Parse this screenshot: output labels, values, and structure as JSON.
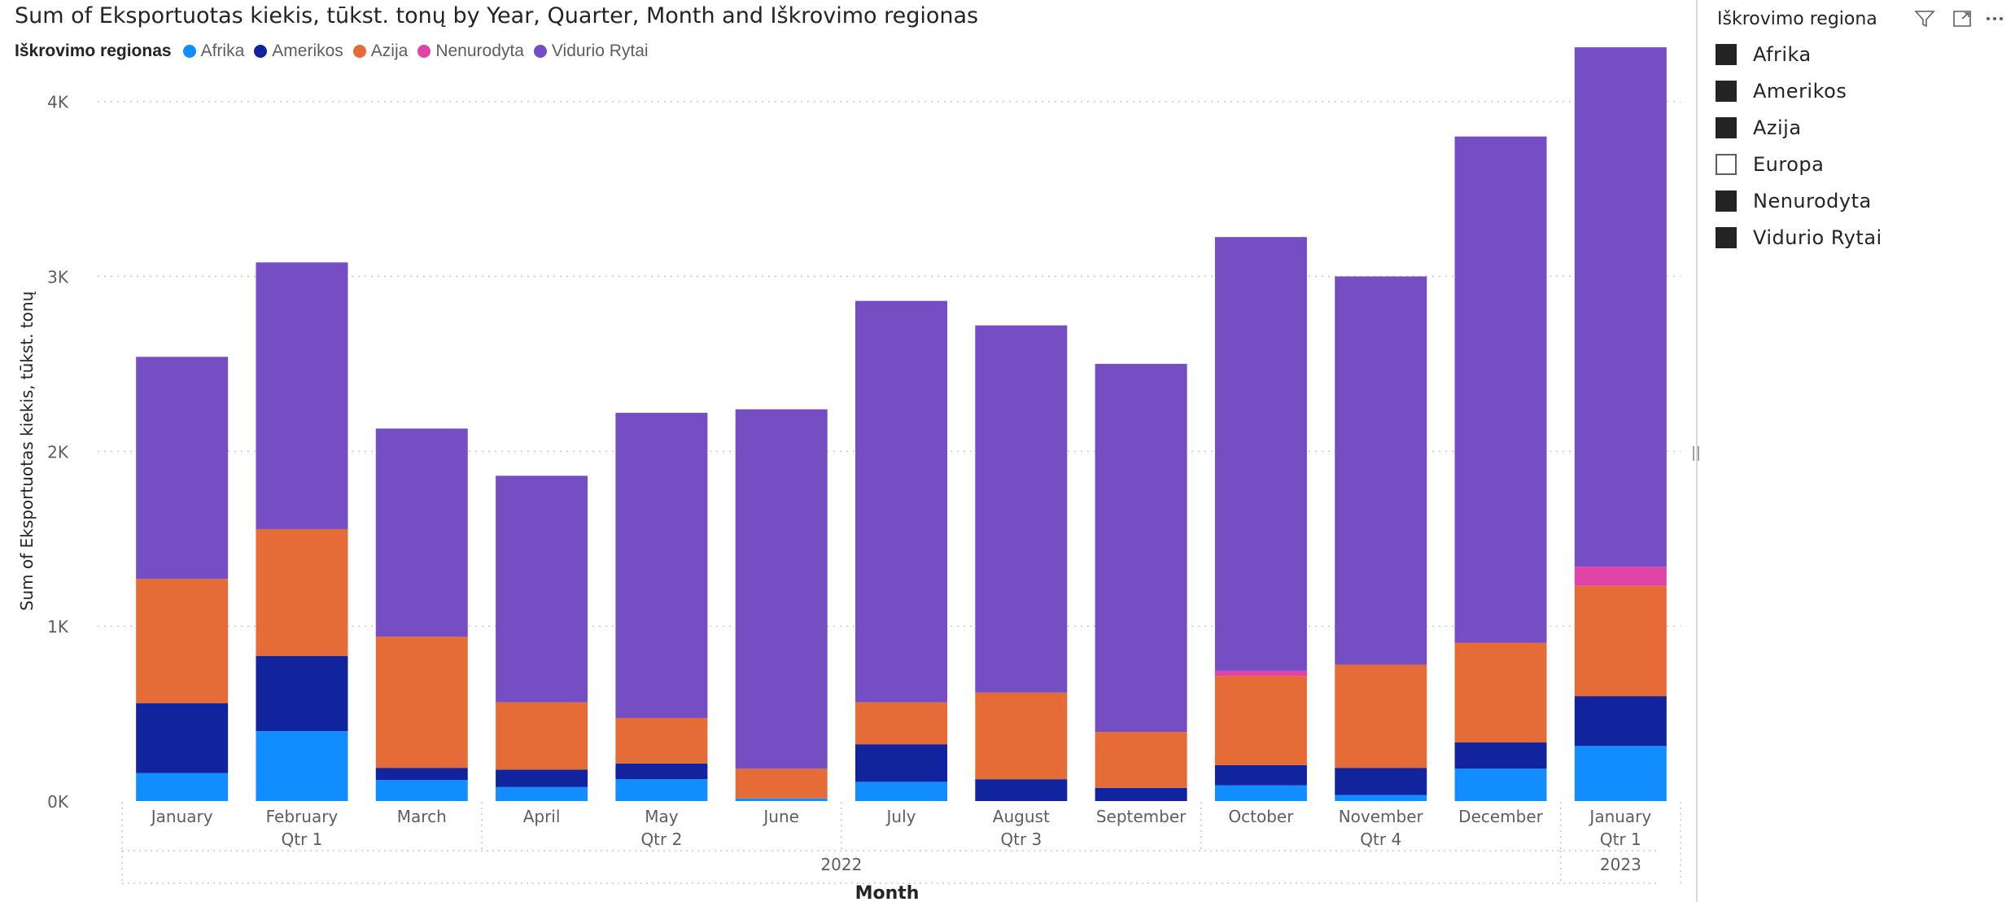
{
  "chart_data": {
    "type": "bar",
    "stacked": true,
    "title": "Sum of Eksportuotas kiekis, tūkst. tonų by Year, Quarter, Month and Iškrovimo regionas",
    "xlabel": "Month",
    "ylabel": "Sum of Eksportuotas kiekis, tūkst. tonų",
    "ylim": [
      0,
      4400
    ],
    "yticks": [
      0,
      1000,
      2000,
      3000,
      4000
    ],
    "ytick_labels": [
      "0K",
      "1K",
      "2K",
      "3K",
      "4K"
    ],
    "grid": true,
    "legend": {
      "title": "Iškrovimo regionas",
      "placement": "top-left",
      "entries": [
        "Afrika",
        "Amerikos",
        "Azija",
        "Nenurodyta",
        "Vidurio Rytai"
      ]
    },
    "categories": [
      "January",
      "February",
      "March",
      "April",
      "May",
      "June",
      "July",
      "August",
      "September",
      "October",
      "November",
      "December",
      "January"
    ],
    "quarter_labels": [
      {
        "label": "Qtr 1",
        "start": 0,
        "end": 2
      },
      {
        "label": "Qtr 2",
        "start": 3,
        "end": 5
      },
      {
        "label": "Qtr 3",
        "start": 6,
        "end": 8
      },
      {
        "label": "Qtr 4",
        "start": 9,
        "end": 11
      },
      {
        "label": "Qtr 1",
        "start": 12,
        "end": 12
      }
    ],
    "year_labels": [
      {
        "label": "2022",
        "start": 0,
        "end": 11
      },
      {
        "label": "2023",
        "start": 12,
        "end": 12
      }
    ],
    "series": [
      {
        "name": "Afrika",
        "color": "#118DFF",
        "values": [
          160,
          400,
          120,
          80,
          125,
          15,
          110,
          0,
          0,
          90,
          35,
          185,
          315
        ]
      },
      {
        "name": "Amerikos",
        "color": "#12239E",
        "values": [
          400,
          430,
          70,
          100,
          90,
          0,
          215,
          125,
          75,
          115,
          155,
          150,
          285
        ]
      },
      {
        "name": "Azija",
        "color": "#E66C37",
        "values": [
          710,
          725,
          750,
          385,
          260,
          170,
          240,
          495,
          320,
          510,
          590,
          570,
          630
        ]
      },
      {
        "name": "Nenurodyta",
        "color": "#E044A7",
        "values": [
          0,
          0,
          0,
          0,
          0,
          0,
          0,
          0,
          0,
          30,
          0,
          0,
          110
        ]
      },
      {
        "name": "Vidurio Rytai",
        "color": "#744EC2",
        "values": [
          1270,
          1525,
          1190,
          1295,
          1745,
          2055,
          2295,
          2100,
          2105,
          2480,
          2220,
          2895,
          2970
        ]
      }
    ]
  },
  "slicer": {
    "title": "Iškrovimo regiona",
    "items": [
      {
        "label": "Afrika",
        "selected": true
      },
      {
        "label": "Amerikos",
        "selected": true
      },
      {
        "label": "Azija",
        "selected": true
      },
      {
        "label": "Europa",
        "selected": false
      },
      {
        "label": "Nenurodyta",
        "selected": true
      },
      {
        "label": "Vidurio Rytai",
        "selected": true
      }
    ],
    "icons": [
      "filter-icon",
      "focus-mode-icon",
      "more-options-icon"
    ]
  }
}
